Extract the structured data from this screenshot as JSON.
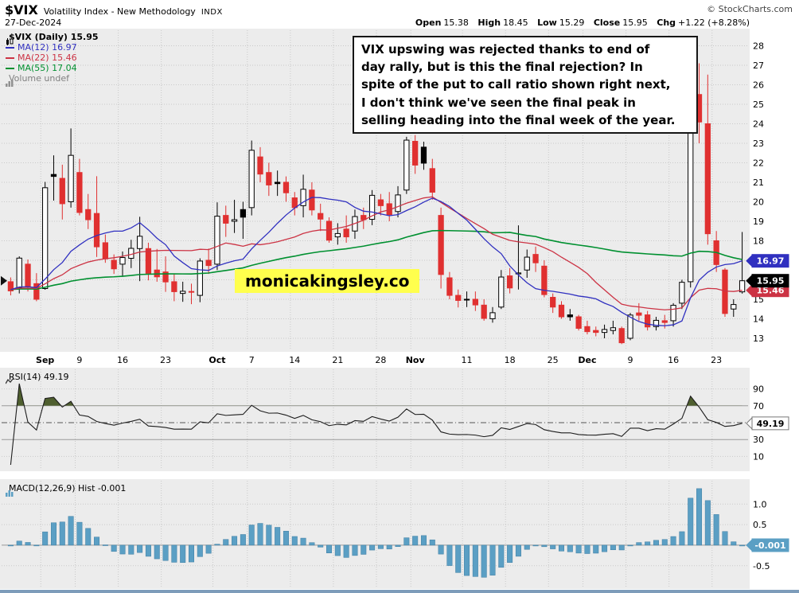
{
  "header": {
    "symbol": "$VIX",
    "name": "Volatility Index - New Methodology",
    "exchange": "INDX",
    "date": "27-Dec-2024",
    "credit": "© StockCharts.com",
    "quote": {
      "open_label": "Open",
      "open": "15.38",
      "high_label": "High",
      "high": "18.45",
      "low_label": "Low",
      "low": "15.29",
      "close_label": "Close",
      "close": "15.95",
      "chg_label": "Chg",
      "chg": "+1.22 (+8.28%)"
    }
  },
  "legend": {
    "main": "$VIX (Daily) 15.95",
    "ma12": "MA(12) 16.97",
    "ma22": "MA(22) 15.46",
    "ma55": "MA(55) 17.04",
    "volume": "Volume undef"
  },
  "annotation": "VIX upswing was rejected thanks to end of\nday rally, but is this the final rejection? In\nspite of the put to call ratio shown right next,\nI don't think we've seen the final peak in\nselling heading into the final week of the year.",
  "watermark": "monicakingsley.co",
  "rsi_label": "RSI(14) 49.19",
  "macd_label": "MACD(12,26,9) Hist -0.001",
  "price_tags": {
    "ma12": "16.97",
    "close": "15.95",
    "ma22": "15.46"
  },
  "rsi_tag": "49.19",
  "macd_tag": "-0.001",
  "icons": {
    "legend_icon": "candlestick-icon",
    "volume_icon": "bar-chart-icon",
    "rsi_icon": "line-chart-icon",
    "macd_icon": "histogram-icon"
  },
  "colors": {
    "panel": "#ececec",
    "grid": "#c9c9c9",
    "candle_up": "#000000",
    "candle_down": "#e03030",
    "ma12": "#3030c0",
    "ma22": "#cc3344",
    "ma55": "#009030",
    "volume_text": "#808080",
    "hist": "#5b9fc4",
    "hist_edge": "#3f7ea3",
    "rsi_line": "#1c1c1c",
    "rsi_fill": "#4f5f2f",
    "tag_close_bg": "#000000",
    "rsi_tag_border": "#777777",
    "watermark_bg": "#ffff4d",
    "bottombar": "#7d9cba"
  },
  "chart_data": {
    "type": "candlestick",
    "title": "$VIX Volatility Index - New Methodology (INDX), Daily",
    "date": "27-Dec-2024",
    "ohlc_last": {
      "open": 15.38,
      "high": 18.45,
      "low": 15.29,
      "close": 15.95,
      "change": 1.22,
      "change_pct": 8.28
    },
    "price_axis": {
      "min": 13,
      "max": 28,
      "ticks": [
        28,
        27,
        26,
        25,
        24,
        23,
        22,
        21,
        20,
        19,
        18,
        17,
        16,
        15,
        14,
        13
      ]
    },
    "x_ticks": [
      {
        "i": 4,
        "label": "Sep",
        "m": true
      },
      {
        "i": 8,
        "label": "9"
      },
      {
        "i": 13,
        "label": "16"
      },
      {
        "i": 18,
        "label": "23"
      },
      {
        "i": 24,
        "label": "Oct",
        "m": true
      },
      {
        "i": 28,
        "label": "7"
      },
      {
        "i": 33,
        "label": "14"
      },
      {
        "i": 38,
        "label": "21"
      },
      {
        "i": 43,
        "label": "28"
      },
      {
        "i": 47,
        "label": "Nov",
        "m": true
      },
      {
        "i": 53,
        "label": "11"
      },
      {
        "i": 58,
        "label": "18"
      },
      {
        "i": 63,
        "label": "25"
      },
      {
        "i": 67,
        "label": "Dec",
        "m": true
      },
      {
        "i": 72,
        "label": "9"
      },
      {
        "i": 77,
        "label": "16"
      },
      {
        "i": 82,
        "label": "23"
      }
    ],
    "candles": [
      [
        "Aug 27",
        15.9,
        16.12,
        15.2,
        15.43
      ],
      [
        "Aug 28",
        15.6,
        17.2,
        15.3,
        17.11
      ],
      [
        "Aug 29",
        16.8,
        17.04,
        15.4,
        15.65
      ],
      [
        "Aug 30",
        15.8,
        16.34,
        14.9,
        15.0
      ],
      [
        "Sep 3",
        15.55,
        21.02,
        15.49,
        20.72
      ],
      [
        "Sep 4",
        21.4,
        22.38,
        20.06,
        21.3
      ],
      [
        "Sep 5",
        21.2,
        21.9,
        19.09,
        19.9
      ],
      [
        "Sep 6",
        20.0,
        23.76,
        19.7,
        22.38
      ],
      [
        "Sep 9",
        21.5,
        22.2,
        19.3,
        19.45
      ],
      [
        "Sep 10",
        19.6,
        20.4,
        18.6,
        19.08
      ],
      [
        "Sep 11",
        19.4,
        21.31,
        17.17,
        17.69
      ],
      [
        "Sep 12",
        17.9,
        18.32,
        16.87,
        17.07
      ],
      [
        "Sep 13",
        17.0,
        17.3,
        16.3,
        16.56
      ],
      [
        "Sep 16",
        16.8,
        17.45,
        16.15,
        17.14
      ],
      [
        "Sep 17",
        17.1,
        18.05,
        16.6,
        17.61
      ],
      [
        "Sep 18",
        17.6,
        19.23,
        15.93,
        18.23
      ],
      [
        "Sep 19",
        17.6,
        17.9,
        15.97,
        16.33
      ],
      [
        "Sep 20",
        16.5,
        17.58,
        15.9,
        16.15
      ],
      [
        "Sep 23",
        16.4,
        17.2,
        15.38,
        15.89
      ],
      [
        "Sep 24",
        15.9,
        16.3,
        14.9,
        15.39
      ],
      [
        "Sep 25",
        15.3,
        15.9,
        14.87,
        15.41
      ],
      [
        "Sep 26",
        15.4,
        15.8,
        14.75,
        15.37
      ],
      [
        "Sep 27",
        15.2,
        17.1,
        14.85,
        16.96
      ],
      [
        "Sep 30",
        17.0,
        17.6,
        16.3,
        16.73
      ],
      [
        "Oct 1",
        16.8,
        19.97,
        16.5,
        19.26
      ],
      [
        "Oct 2",
        19.3,
        19.8,
        18.2,
        18.9
      ],
      [
        "Oct 3",
        19.0,
        20.1,
        18.4,
        19.08
      ],
      [
        "Oct 4",
        19.6,
        20.0,
        18.1,
        19.21
      ],
      [
        "Oct 7",
        19.7,
        23.14,
        19.3,
        22.64
      ],
      [
        "Oct 8",
        22.3,
        22.8,
        21.0,
        21.42
      ],
      [
        "Oct 9",
        21.5,
        22.0,
        20.3,
        20.86
      ],
      [
        "Oct 10",
        21.0,
        21.6,
        20.3,
        20.93
      ],
      [
        "Oct 11",
        21.0,
        21.3,
        20.0,
        20.46
      ],
      [
        "Oct 14",
        20.2,
        20.5,
        19.3,
        19.7
      ],
      [
        "Oct 15",
        19.8,
        21.39,
        19.2,
        20.64
      ],
      [
        "Oct 16",
        20.6,
        21.0,
        19.3,
        19.58
      ],
      [
        "Oct 17",
        19.4,
        19.9,
        18.5,
        19.11
      ],
      [
        "Oct 18",
        19.0,
        19.2,
        17.9,
        18.03
      ],
      [
        "Oct 21",
        18.2,
        18.9,
        17.8,
        18.37
      ],
      [
        "Oct 22",
        18.6,
        19.3,
        17.9,
        18.2
      ],
      [
        "Oct 23",
        18.5,
        19.6,
        18.1,
        19.24
      ],
      [
        "Oct 24",
        19.3,
        19.7,
        18.6,
        19.08
      ],
      [
        "Oct 25",
        19.1,
        20.6,
        18.8,
        20.33
      ],
      [
        "Oct 28",
        20.1,
        20.4,
        19.3,
        19.8
      ],
      [
        "Oct 29",
        19.9,
        20.5,
        19.0,
        19.34
      ],
      [
        "Oct 30",
        19.5,
        20.8,
        19.2,
        20.35
      ],
      [
        "Oct 31",
        20.6,
        23.33,
        20.4,
        23.16
      ],
      [
        "Nov 1",
        23.1,
        23.42,
        21.43,
        21.88
      ],
      [
        "Nov 4",
        22.8,
        23.08,
        21.64,
        21.98
      ],
      [
        "Nov 5",
        21.7,
        22.2,
        20.1,
        20.49
      ],
      [
        "Nov 6",
        19.3,
        19.7,
        15.55,
        16.27
      ],
      [
        "Nov 7",
        16.1,
        16.4,
        15.0,
        15.2
      ],
      [
        "Nov 8",
        15.2,
        15.5,
        14.58,
        14.94
      ],
      [
        "Nov 11",
        15.0,
        15.4,
        14.6,
        14.97
      ],
      [
        "Nov 12",
        15.0,
        15.4,
        14.4,
        14.71
      ],
      [
        "Nov 13",
        14.7,
        15.0,
        13.9,
        14.02
      ],
      [
        "Nov 14",
        14.0,
        14.6,
        13.8,
        14.31
      ],
      [
        "Nov 15",
        14.6,
        16.5,
        14.5,
        16.14
      ],
      [
        "Nov 18",
        16.2,
        16.6,
        15.3,
        15.58
      ],
      [
        "Nov 19",
        16.3,
        18.79,
        15.5,
        16.35
      ],
      [
        "Nov 20",
        16.5,
        17.55,
        16.1,
        17.16
      ],
      [
        "Nov 21",
        17.3,
        17.7,
        16.4,
        16.87
      ],
      [
        "Nov 22",
        16.7,
        17.0,
        15.1,
        15.24
      ],
      [
        "Nov 25",
        15.1,
        15.3,
        14.3,
        14.6
      ],
      [
        "Nov 26",
        14.7,
        14.9,
        14.0,
        14.1
      ],
      [
        "Nov 27",
        14.2,
        14.5,
        13.9,
        14.1
      ],
      [
        "Nov 29",
        14.1,
        14.2,
        13.4,
        13.51
      ],
      [
        "Dec 2",
        13.6,
        13.9,
        13.2,
        13.34
      ],
      [
        "Dec 3",
        13.4,
        13.6,
        13.1,
        13.3
      ],
      [
        "Dec 4",
        13.3,
        13.7,
        13.0,
        13.45
      ],
      [
        "Dec 5",
        13.4,
        13.9,
        13.2,
        13.54
      ],
      [
        "Dec 6",
        13.5,
        13.6,
        12.7,
        12.77
      ],
      [
        "Dec 9",
        13.0,
        14.3,
        12.9,
        14.19
      ],
      [
        "Dec 10",
        14.3,
        14.8,
        13.9,
        14.18
      ],
      [
        "Dec 11",
        14.2,
        14.4,
        13.4,
        13.58
      ],
      [
        "Dec 12",
        13.6,
        14.1,
        13.4,
        13.92
      ],
      [
        "Dec 13",
        13.9,
        14.2,
        13.5,
        13.81
      ],
      [
        "Dec 16",
        13.9,
        14.8,
        13.6,
        14.69
      ],
      [
        "Dec 17",
        14.8,
        16.0,
        14.5,
        15.87
      ],
      [
        "Dec 18",
        15.9,
        28.32,
        15.6,
        27.62
      ],
      [
        "Dec 19",
        25.5,
        27.1,
        23.0,
        24.09
      ],
      [
        "Dec 20",
        24.0,
        26.52,
        17.8,
        18.36
      ],
      [
        "Dec 23",
        18.0,
        18.5,
        16.4,
        16.78
      ],
      [
        "Dec 24",
        16.5,
        16.6,
        14.1,
        14.27
      ],
      [
        "Dec 26",
        14.5,
        15.0,
        14.1,
        14.73
      ],
      [
        "Dec 27",
        15.38,
        18.45,
        15.29,
        15.95
      ]
    ],
    "overlays": [
      {
        "name": "MA(12)",
        "period": 12,
        "last": 16.97,
        "color_key": "ma12"
      },
      {
        "name": "MA(22)",
        "period": 22,
        "last": 15.46,
        "color_key": "ma22"
      },
      {
        "name": "MA(55)",
        "period": 55,
        "last": 17.04,
        "color_key": "ma55"
      }
    ],
    "volume": "undef",
    "rsi": {
      "name": "RSI(14)",
      "period": 14,
      "last": 49.19,
      "ticks": [
        90,
        70,
        30,
        10
      ],
      "overbought": 70,
      "oversold": 30,
      "mid": 50
    },
    "macd": {
      "name": "MACD(12,26,9)",
      "fast": 12,
      "slow": 26,
      "signal": 9,
      "hist_last": -0.001,
      "ticks": [
        "1.0",
        "0.5",
        "-0.5"
      ],
      "display": "histogram"
    }
  }
}
